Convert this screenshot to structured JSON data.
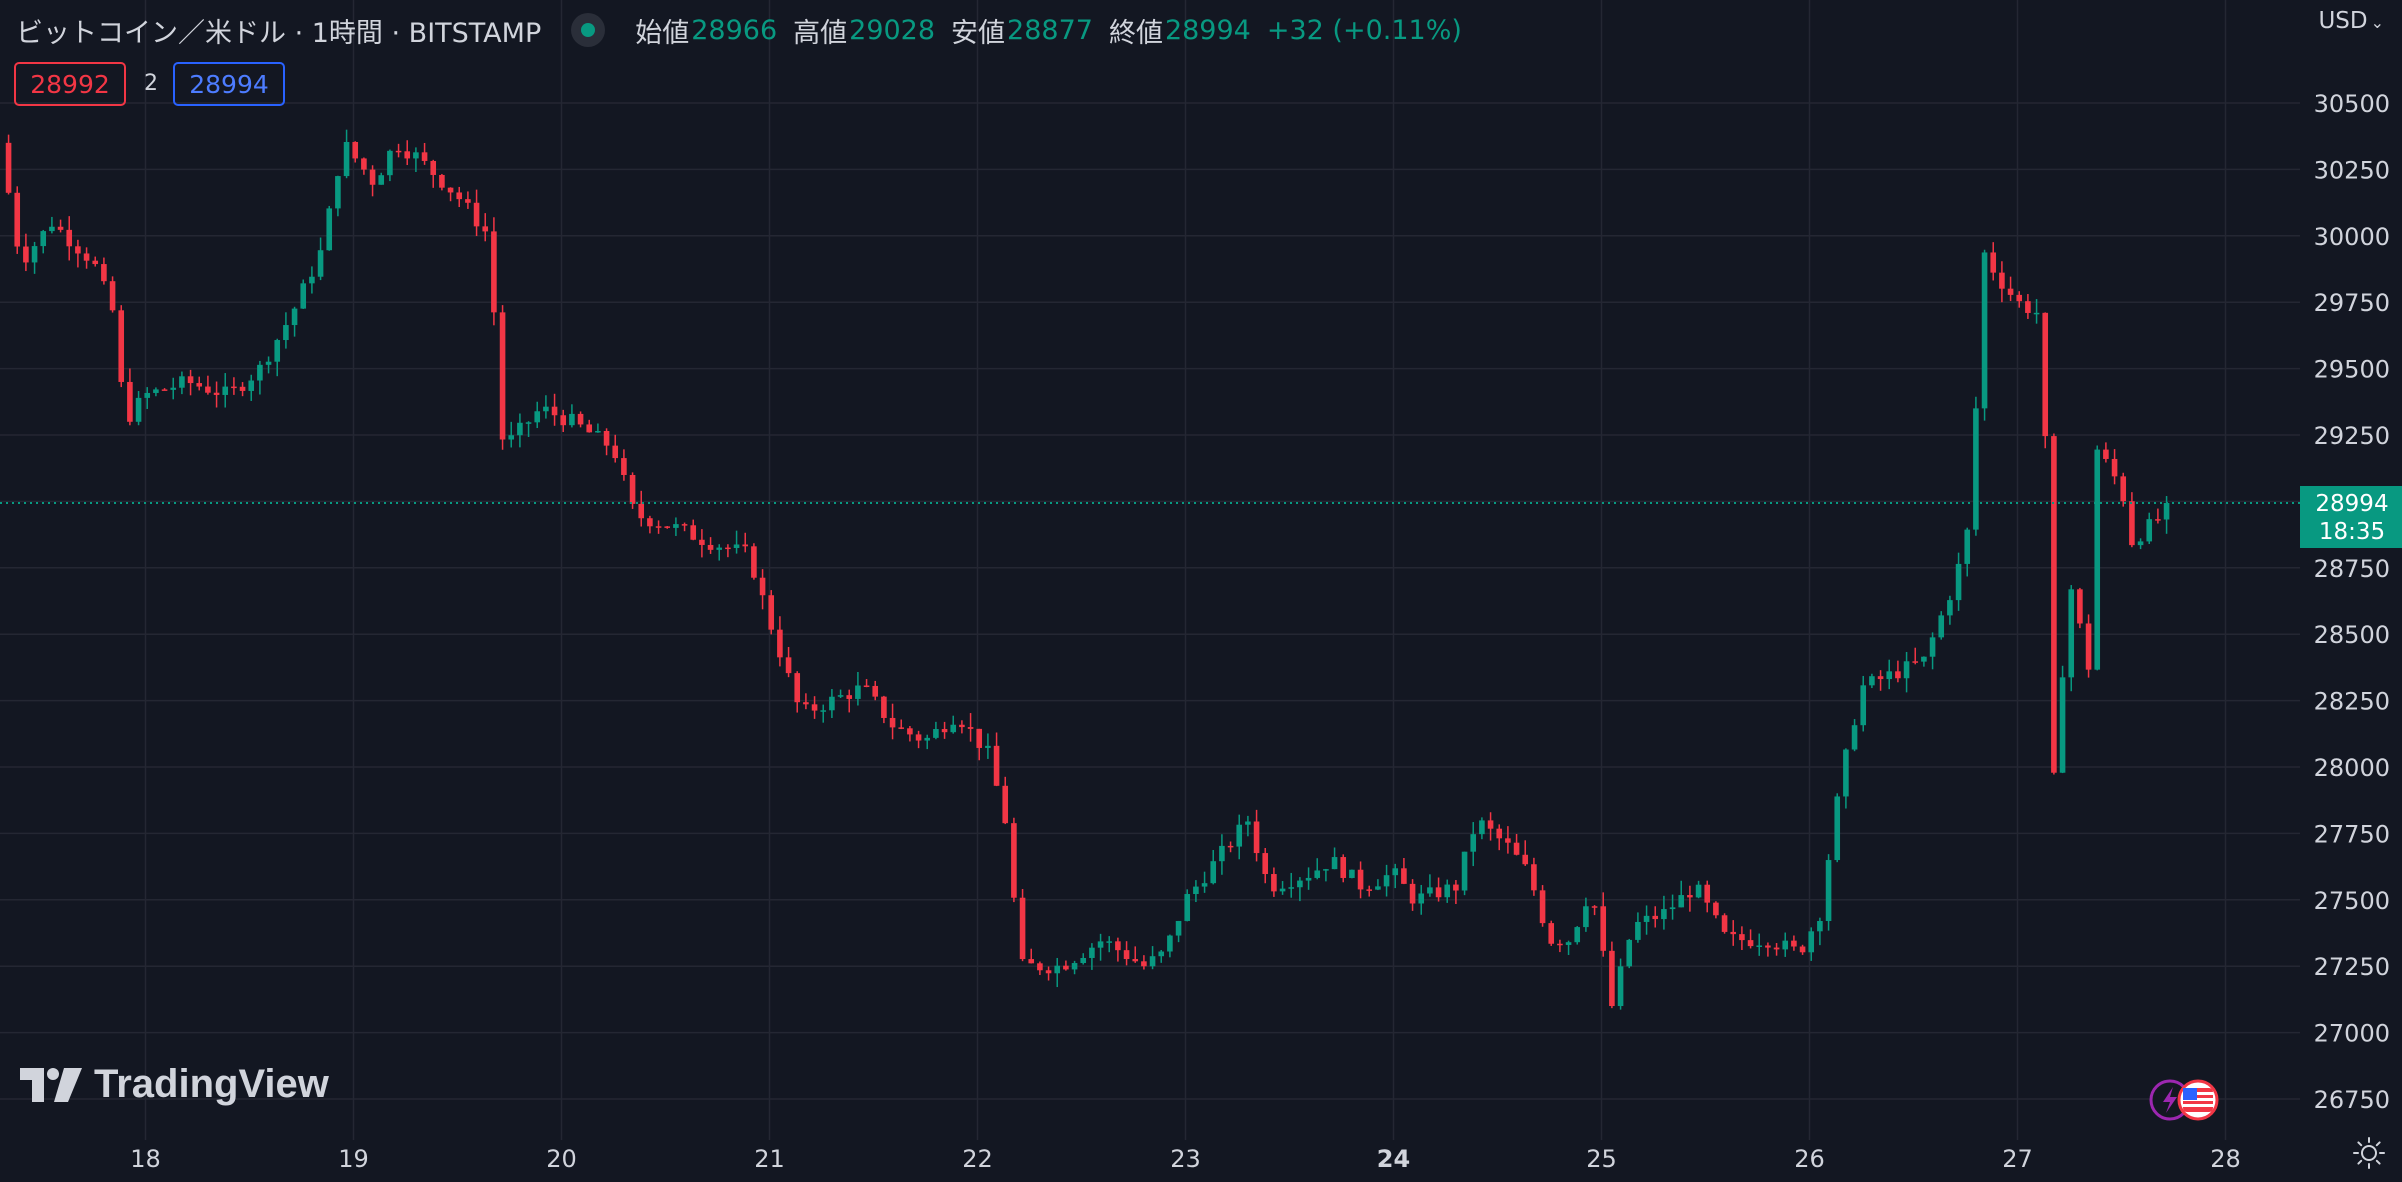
{
  "header": {
    "symbol": "ビットコイン／米ドル · 1時間 · BITSTAMP",
    "open_label": "始値",
    "open": "28966",
    "high_label": "高値",
    "high": "29028",
    "low_label": "安値",
    "low": "28877",
    "close_label": "終値",
    "close": "28994",
    "change": "+32 (+0.11%)",
    "currency": "USD"
  },
  "trade": {
    "sell": "28992",
    "spread": "2",
    "buy": "28994"
  },
  "branding": {
    "logo_text": "TradingView"
  },
  "last_price": {
    "value": "28994",
    "countdown": "18:35"
  },
  "colors": {
    "up": "#089981",
    "down": "#f23645",
    "background": "#131722",
    "grid": "#242733",
    "text": "#d1d4dc"
  },
  "icons": [
    "tradingview-logo-icon",
    "market-status-dot-icon",
    "settings-gear-icon",
    "us-flag-icon",
    "lightning-icon"
  ],
  "chart_data": {
    "type": "candlestick",
    "interval": "1h",
    "currency": "USD",
    "y_ticks": [
      26750,
      27000,
      27250,
      27500,
      27750,
      28000,
      28250,
      28500,
      28750,
      29250,
      29500,
      29750,
      30000,
      30250,
      30500
    ],
    "ylim": [
      26500,
      30800
    ],
    "x_ticks": [
      {
        "label": "18",
        "day": 18
      },
      {
        "label": "19",
        "day": 19
      },
      {
        "label": "20",
        "day": 20
      },
      {
        "label": "21",
        "day": 21
      },
      {
        "label": "22",
        "day": 22
      },
      {
        "label": "23",
        "day": 23
      },
      {
        "label": "24",
        "day": 24,
        "bold": true
      },
      {
        "label": "25",
        "day": 25
      },
      {
        "label": "26",
        "day": 26
      },
      {
        "label": "27",
        "day": 27
      },
      {
        "label": "28",
        "day": 28
      }
    ],
    "xlim_days": [
      17.3,
      28.3
    ],
    "close_path": [
      [
        17.3,
        30350
      ],
      [
        17.4,
        29900
      ],
      [
        17.55,
        30050
      ],
      [
        17.75,
        29900
      ],
      [
        17.85,
        29700
      ],
      [
        17.9,
        29300
      ],
      [
        18.0,
        29400
      ],
      [
        18.2,
        29450
      ],
      [
        18.4,
        29400
      ],
      [
        18.55,
        29500
      ],
      [
        18.7,
        29700
      ],
      [
        18.85,
        29950
      ],
      [
        18.95,
        30350
      ],
      [
        19.1,
        30200
      ],
      [
        19.2,
        30350
      ],
      [
        19.3,
        30300
      ],
      [
        19.5,
        30150
      ],
      [
        19.65,
        30000
      ],
      [
        19.72,
        29200
      ],
      [
        19.9,
        29350
      ],
      [
        20.05,
        29300
      ],
      [
        20.25,
        29200
      ],
      [
        20.35,
        28950
      ],
      [
        20.55,
        28900
      ],
      [
        20.7,
        28850
      ],
      [
        20.9,
        28800
      ],
      [
        21.0,
        28550
      ],
      [
        21.15,
        28200
      ],
      [
        21.3,
        28250
      ],
      [
        21.45,
        28300
      ],
      [
        21.6,
        28150
      ],
      [
        21.75,
        28100
      ],
      [
        21.9,
        28200
      ],
      [
        22.05,
        28050
      ],
      [
        22.15,
        27750
      ],
      [
        22.2,
        27250
      ],
      [
        22.4,
        27250
      ],
      [
        22.6,
        27350
      ],
      [
        22.8,
        27250
      ],
      [
        22.9,
        27300
      ],
      [
        23.0,
        27500
      ],
      [
        23.15,
        27650
      ],
      [
        23.3,
        27800
      ],
      [
        23.4,
        27550
      ],
      [
        23.6,
        27600
      ],
      [
        23.7,
        27650
      ],
      [
        23.85,
        27550
      ],
      [
        24.0,
        27600
      ],
      [
        24.1,
        27500
      ],
      [
        24.3,
        27550
      ],
      [
        24.4,
        27800
      ],
      [
        24.55,
        27700
      ],
      [
        24.65,
        27600
      ],
      [
        24.75,
        27350
      ],
      [
        24.85,
        27350
      ],
      [
        24.95,
        27550
      ],
      [
        25.05,
        27100
      ],
      [
        25.15,
        27400
      ],
      [
        25.3,
        27450
      ],
      [
        25.45,
        27550
      ],
      [
        25.6,
        27350
      ],
      [
        25.8,
        27350
      ],
      [
        25.95,
        27300
      ],
      [
        26.05,
        27450
      ],
      [
        26.15,
        27950
      ],
      [
        26.25,
        28300
      ],
      [
        26.4,
        28350
      ],
      [
        26.55,
        28400
      ],
      [
        26.7,
        28700
      ],
      [
        26.78,
        28950
      ],
      [
        26.83,
        29950
      ],
      [
        26.9,
        29850
      ],
      [
        27.0,
        29750
      ],
      [
        27.12,
        29700
      ],
      [
        27.17,
        27900
      ],
      [
        27.25,
        28700
      ],
      [
        27.35,
        28350
      ],
      [
        27.38,
        29200
      ],
      [
        27.5,
        29050
      ],
      [
        27.55,
        28850
      ],
      [
        27.7,
        28950
      ],
      [
        27.75,
        28994
      ]
    ]
  }
}
